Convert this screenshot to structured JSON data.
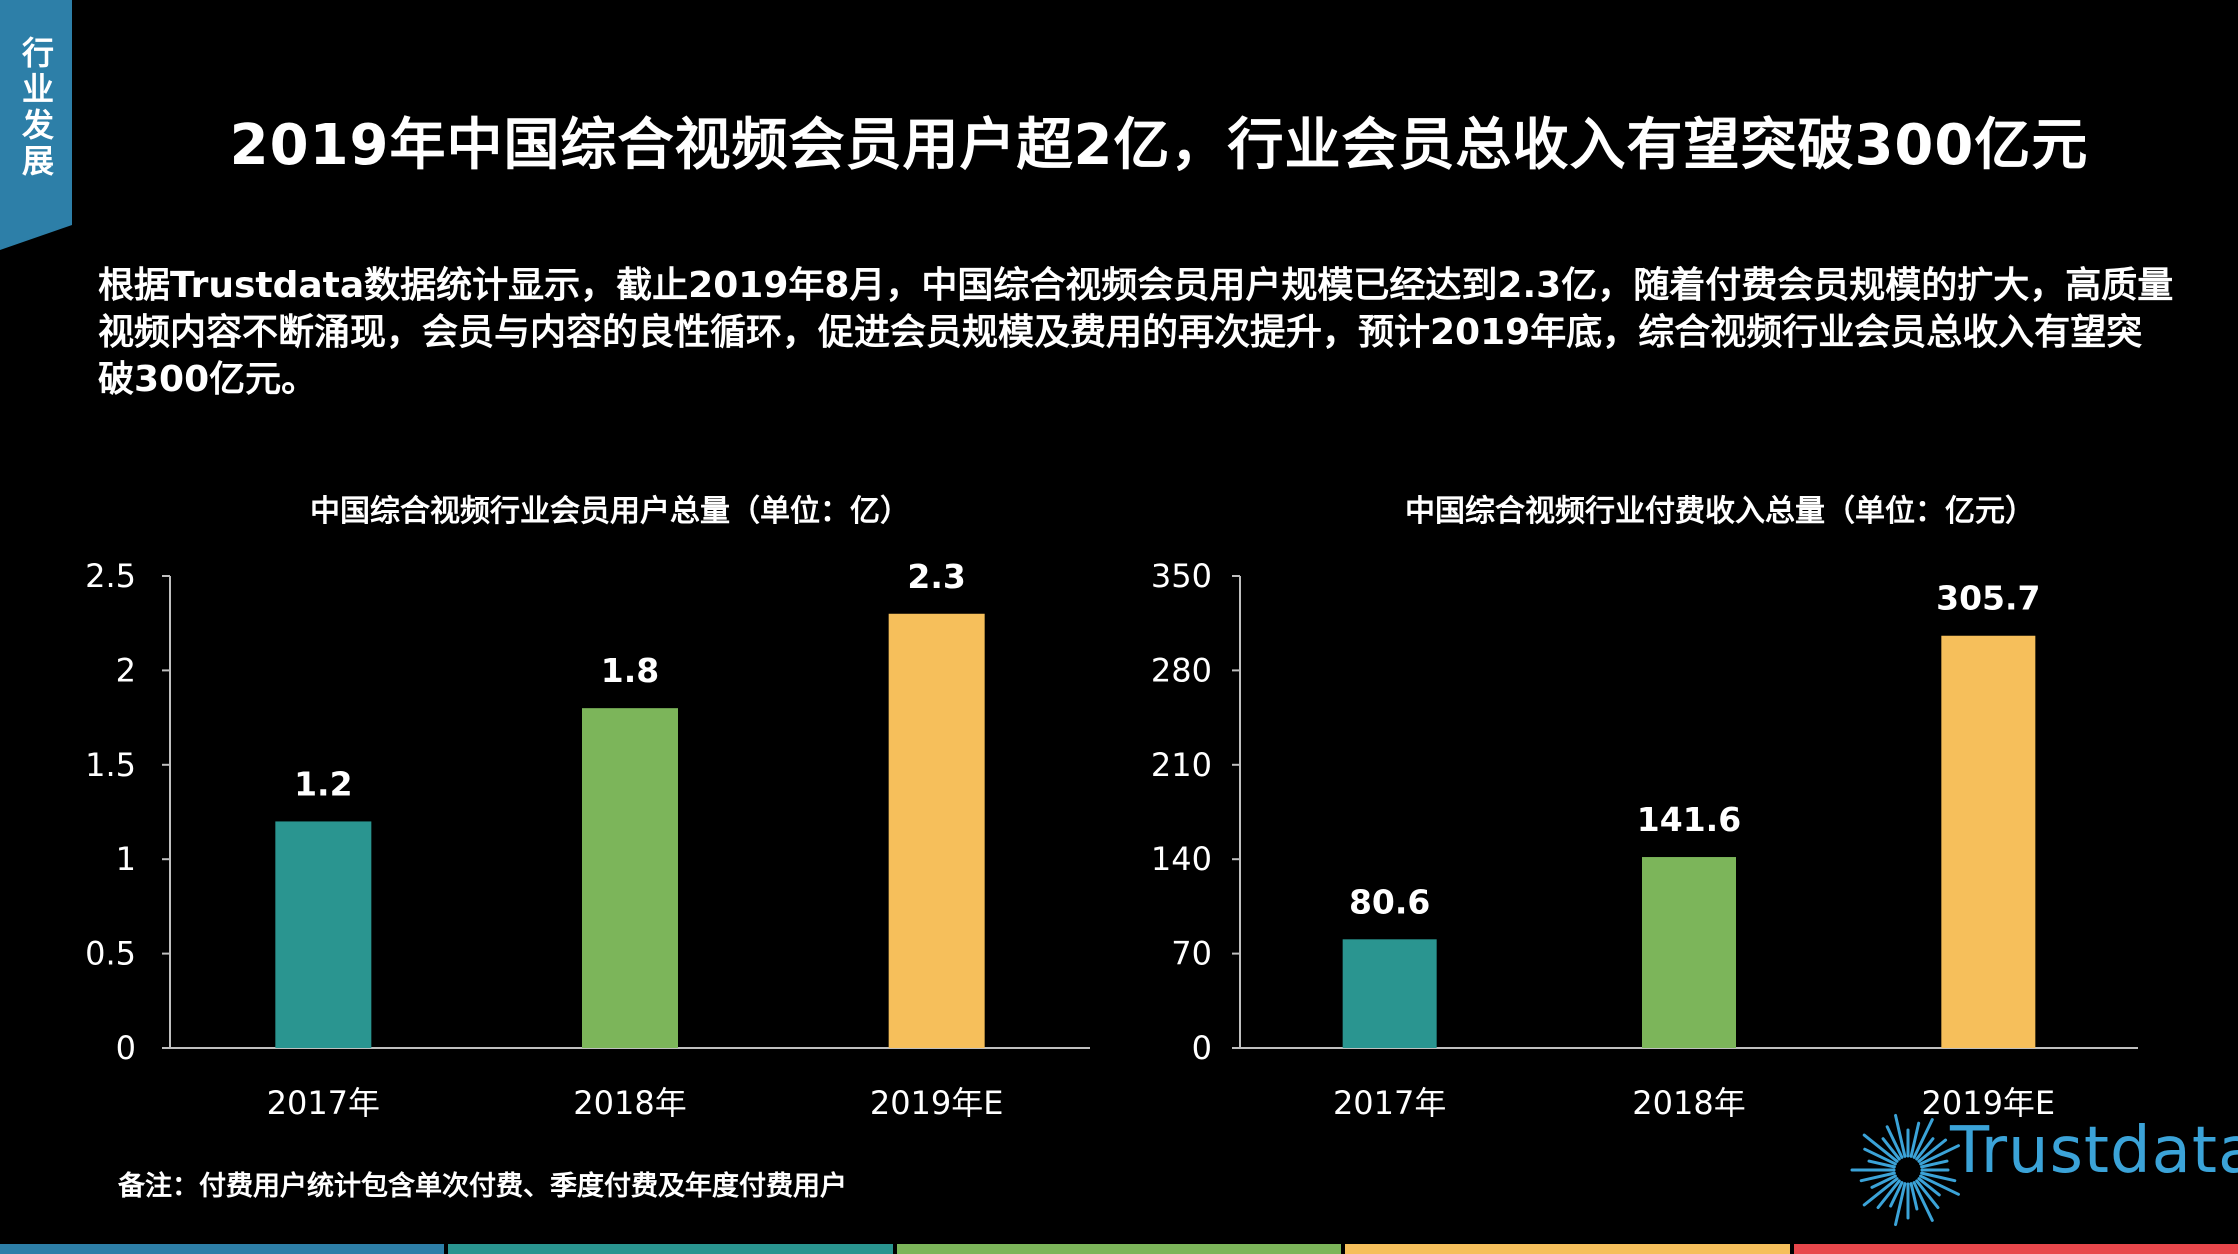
{
  "section_tag": "行业发展",
  "page_title": "2019年中国综合视频会员用户超2亿，行业会员总收入有望突破300亿元",
  "summary": "根据Trustdata数据统计显示，截止2019年8月，中国综合视频会员用户规模已经达到2.3亿，随着付费会员规模的扩大，高质量视频内容不断涌现，会员与内容的良性循环，促进会员规模及费用的再次提升，预计2019年底，综合视频行业会员总收入有望突破300亿元。",
  "note": "备注：付费用户统计包含单次付费、季度付费及年度付费用户",
  "logo_text": "Trustdata",
  "colors": {
    "background": "#000000",
    "tag": "#2d7fa8",
    "bar_2017": "#2a9590",
    "bar_2018": "#7cb55a",
    "bar_2019": "#f6bf5b",
    "logo": "#3ba3d8",
    "stripes": [
      "#2d7fa8",
      "#2a9590",
      "#7cb55a",
      "#f6bf5b",
      "#e8474b"
    ]
  },
  "chart_data": [
    {
      "type": "bar",
      "title": "中国综合视频行业会员用户总量（单位：亿）",
      "categories": [
        "2017年",
        "2018年",
        "2019年E"
      ],
      "values": [
        1.2,
        1.8,
        2.3
      ],
      "value_labels": [
        "1.2",
        "1.8",
        "2.3"
      ],
      "ylim": [
        0,
        2.5
      ],
      "yticks": [
        "0",
        "0.5",
        "1",
        "1.5",
        "2",
        "2.5"
      ],
      "ytick_values": [
        0,
        0.5,
        1,
        1.5,
        2,
        2.5
      ],
      "bar_colors": [
        "#2a9590",
        "#7cb55a",
        "#f6bf5b"
      ],
      "grid": false
    },
    {
      "type": "bar",
      "title": "中国综合视频行业付费收入总量（单位：亿元）",
      "categories": [
        "2017年",
        "2018年",
        "2019年E"
      ],
      "values": [
        80.6,
        141.6,
        305.7
      ],
      "value_labels": [
        "80.6",
        "141.6",
        "305.7"
      ],
      "ylim": [
        0,
        350
      ],
      "yticks": [
        "0",
        "70",
        "140",
        "210",
        "280",
        "350"
      ],
      "ytick_values": [
        0,
        70,
        140,
        210,
        280,
        350
      ],
      "bar_colors": [
        "#2a9590",
        "#7cb55a",
        "#f6bf5b"
      ],
      "grid": false
    }
  ]
}
